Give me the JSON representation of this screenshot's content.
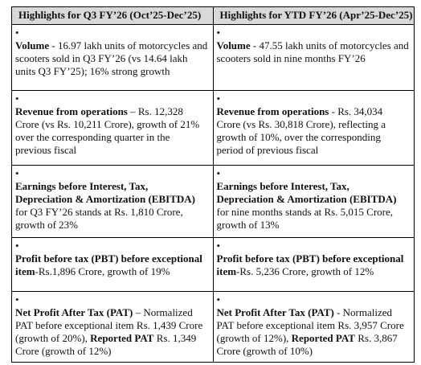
{
  "table": {
    "columns": [
      {
        "header": "Highlights for Q3 FY’26 (Oct’25-Dec’25)",
        "items": [
          {
            "parts": [
              {
                "text": "Volume",
                "bold": true
              },
              {
                "text": " - 16.97 lakh units of motorcycles and scooters sold in Q3 FY’26 (vs 14.64 lakh units Q3 FY’25); 16% strong growth",
                "bold": false
              }
            ]
          },
          {
            "parts": [
              {
                "text": "Revenue from operations",
                "bold": true
              },
              {
                "text": " – Rs. 12,328 Crore (vs Rs. 10,211 Crore), growth of 21% over the corresponding quarter in the previous fiscal",
                "bold": false
              }
            ]
          },
          {
            "parts": [
              {
                "text": "Earnings before Interest, Tax, Depreciation & Amortization (EBITDA)",
                "bold": true
              },
              {
                "text": " for Q3 FY’26 stands at Rs. 1,810 Crore, growth of 23%",
                "bold": false
              }
            ]
          },
          {
            "parts": [
              {
                "text": "Profit before tax (PBT) before exceptional item",
                "bold": true
              },
              {
                "text": "-Rs.1,896 Crore, growth of 19%",
                "bold": false
              }
            ]
          },
          {
            "parts": [
              {
                "text": "Net Profit After Tax (PAT)",
                "bold": true
              },
              {
                "text": " – Normalized PAT before exceptional item Rs. 1,439 Crore (growth of 20%), ",
                "bold": false
              },
              {
                "text": "Reported PAT",
                "bold": true
              },
              {
                "text": " Rs. 1,349 Crore (growth of 12%)",
                "bold": false
              }
            ]
          }
        ]
      },
      {
        "header": "Highlights for YTD FY’26 (Apr’25-Dec’25)",
        "items": [
          {
            "parts": [
              {
                "text": "Volume",
                "bold": true
              },
              {
                "text": " - 47.55 lakh units of motorcycles and scooters sold in nine months FY’26",
                "bold": false
              }
            ]
          },
          {
            "parts": [
              {
                "text": "Revenue from operations",
                "bold": true
              },
              {
                "text": " - Rs. 34,034 Crore (vs Rs. 30,818 Crore), reflecting a growth of 10%, over the corresponding period of previous fiscal",
                "bold": false
              }
            ]
          },
          {
            "parts": [
              {
                "text": "Earnings before Interest, Tax, Depreciation & Amortization (EBITDA)",
                "bold": true
              },
              {
                "text": " for nine months stands at Rs. 5,015 Crore, growth of 13%",
                "bold": false
              }
            ]
          },
          {
            "parts": [
              {
                "text": "Profit before tax (PBT) before exceptional item",
                "bold": true
              },
              {
                "text": "-Rs. 5,236 Crore, growth of 12%",
                "bold": false
              }
            ]
          },
          {
            "parts": [
              {
                "text": "Net Profit After Tax (PAT)",
                "bold": true
              },
              {
                "text": " - Normalized PAT before exceptional item Rs. 3,957 Crore (growth of 12%), ",
                "bold": false
              },
              {
                "text": "Reported PAT",
                "bold": true
              },
              {
                "text": " Rs. 3,867 Crore (growth of 10%)",
                "bold": false
              }
            ]
          }
        ]
      }
    ]
  }
}
